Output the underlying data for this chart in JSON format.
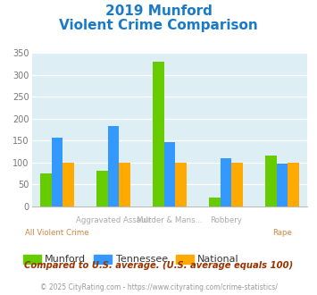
{
  "title_line1": "2019 Munford",
  "title_line2": "Violent Crime Comparison",
  "munford": [
    75,
    82,
    330,
    20,
    117
  ],
  "tennessee": [
    157,
    183,
    147,
    110,
    98
  ],
  "national": [
    100,
    100,
    100,
    100,
    100
  ],
  "munford_color": "#66cc00",
  "tennessee_color": "#3399ff",
  "national_color": "#ffaa00",
  "title_color": "#1a7ac8",
  "xlabel_top_color": "#aaaaaa",
  "xlabel_bot_color": "#cc8844",
  "bg_color": "#ddeef5",
  "ylim": [
    0,
    350
  ],
  "yticks": [
    0,
    50,
    100,
    150,
    200,
    250,
    300,
    350
  ],
  "footnote1": "Compared to U.S. average. (U.S. average equals 100)",
  "footnote2": "© 2025 CityRating.com - https://www.cityrating.com/crime-statistics/",
  "footnote1_color": "#993300",
  "footnote2_color": "#999999",
  "legend_labels": [
    "Munford",
    "Tennessee",
    "National"
  ],
  "legend_text_color": "#333333",
  "bar_width": 0.2,
  "group_positions": [
    0,
    1,
    2,
    3,
    4
  ]
}
